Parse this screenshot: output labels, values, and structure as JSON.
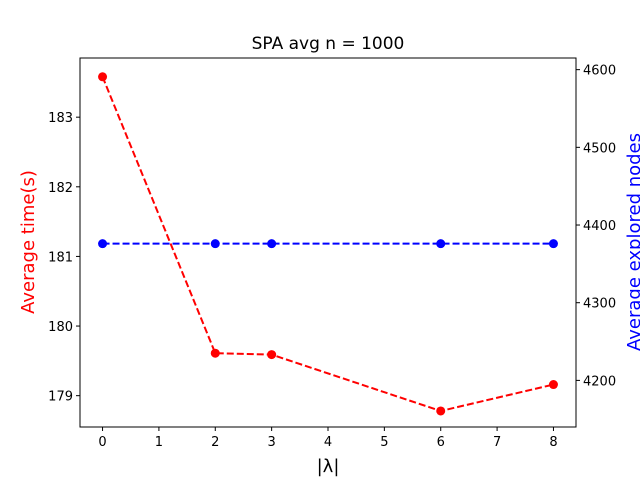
{
  "chart_data": {
    "type": "line",
    "title": "SPA avg n = 1000",
    "xlabel": "|λ|",
    "ylabel_left": "Average time(s)",
    "ylabel_right": "Average explored nodes",
    "xlim": [
      -0.4,
      8.4
    ],
    "xticks": [
      0,
      1,
      2,
      3,
      4,
      5,
      6,
      7,
      8
    ],
    "ylim_left": [
      178.55,
      183.85
    ],
    "yticks_left": [
      179,
      180,
      181,
      182,
      183
    ],
    "ylim_right": [
      4140,
      4615
    ],
    "yticks_right": [
      4200,
      4300,
      4400,
      4500,
      4600
    ],
    "grid": false,
    "series": [
      {
        "axis": "left",
        "color": "#ff0000",
        "style": "dashed",
        "marker": "circle",
        "x": [
          0,
          2,
          3,
          6,
          8
        ],
        "y": [
          183.58,
          179.61,
          179.59,
          178.78,
          179.16
        ]
      },
      {
        "axis": "right",
        "color": "#0000ff",
        "style": "dashed",
        "marker": "circle",
        "x": [
          0,
          2,
          3,
          6,
          8
        ],
        "y": [
          4376,
          4376,
          4376,
          4376,
          4376
        ]
      }
    ]
  }
}
